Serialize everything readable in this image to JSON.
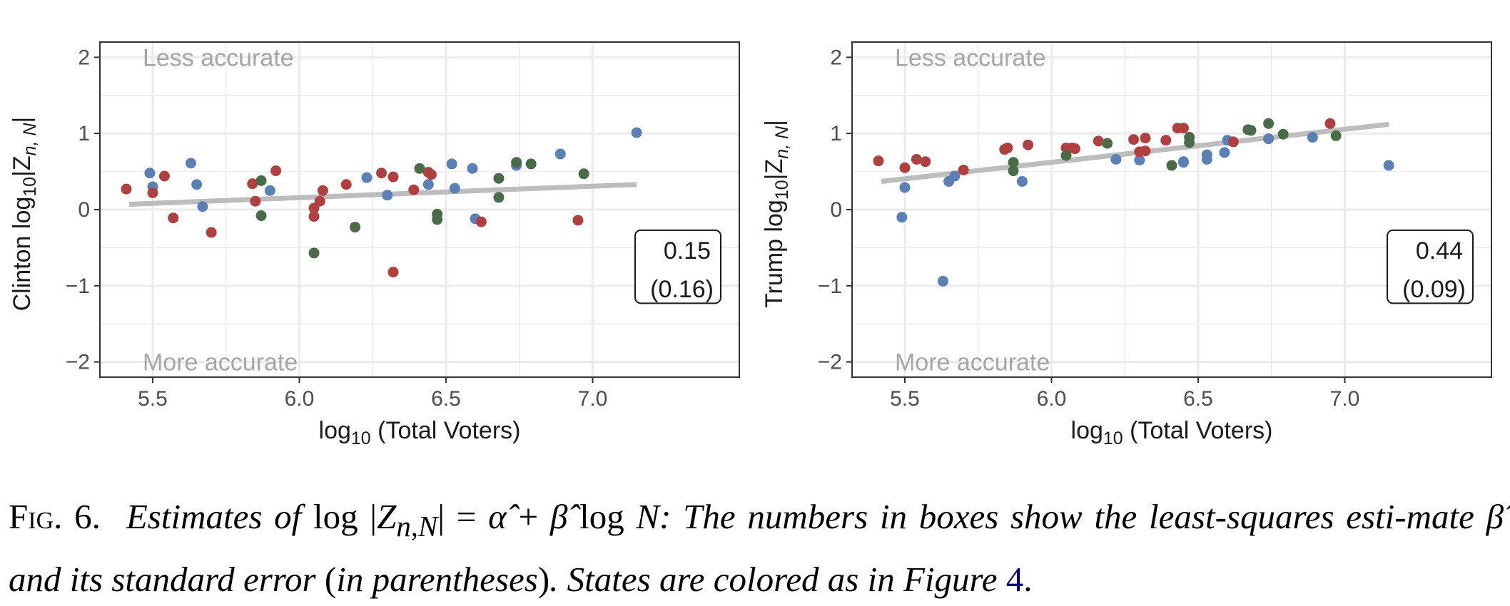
{
  "colors": {
    "blue": "#5b80b5",
    "red": "#b04040",
    "green": "#4a6b48",
    "fit_line": "#bdbdbd",
    "grid": "#ebebeb"
  },
  "chart_data": [
    {
      "type": "scatter",
      "ylabel_prefix": "Clinton  log",
      "ylabel_sub": "10",
      "ylabel_suffix": "|Z",
      "ylabel_index": "n, N",
      "ylabel_close": "|",
      "xlabel_prefix": "log",
      "xlabel_sub": "10",
      "xlabel_suffix": " (Total Voters)",
      "xlim": [
        5.32,
        7.5
      ],
      "ylim": [
        -2.2,
        2.2
      ],
      "x_ticks": [
        5.5,
        6.0,
        6.5,
        7.0
      ],
      "x_tick_labels": [
        "5.5",
        "6.0",
        "6.5",
        "7.0"
      ],
      "y_ticks": [
        -2,
        -1,
        0,
        1,
        2
      ],
      "y_tick_labels": [
        "−2",
        "−1",
        "0",
        "1",
        "2"
      ],
      "grid": true,
      "annotation_top": "Less accurate",
      "annotation_bottom": "More accurate",
      "estimate": "0.15",
      "std_error": "(0.16)",
      "fit_line": {
        "x": [
          5.42,
          7.15
        ],
        "y": [
          0.07,
          0.33
        ]
      },
      "series": [
        {
          "color_key": "blue",
          "points": [
            [
              5.49,
              0.48
            ],
            [
              5.5,
              0.3
            ],
            [
              5.63,
              0.61
            ],
            [
              5.65,
              0.33
            ],
            [
              5.67,
              0.04
            ],
            [
              5.9,
              0.25
            ],
            [
              6.23,
              0.42
            ],
            [
              6.3,
              0.19
            ],
            [
              6.44,
              0.33
            ],
            [
              6.52,
              0.6
            ],
            [
              6.53,
              0.28
            ],
            [
              6.59,
              0.54
            ],
            [
              6.6,
              -0.12
            ],
            [
              6.74,
              0.58
            ],
            [
              6.89,
              0.73
            ],
            [
              7.15,
              1.01
            ]
          ]
        },
        {
          "color_key": "red",
          "points": [
            [
              5.41,
              0.27
            ],
            [
              5.5,
              0.22
            ],
            [
              5.54,
              0.44
            ],
            [
              5.57,
              -0.11
            ],
            [
              5.7,
              -0.3
            ],
            [
              5.84,
              0.34
            ],
            [
              5.85,
              0.11
            ],
            [
              5.92,
              0.51
            ],
            [
              6.05,
              0.02
            ],
            [
              6.05,
              -0.09
            ],
            [
              6.07,
              0.11
            ],
            [
              6.08,
              0.25
            ],
            [
              6.16,
              0.33
            ],
            [
              6.28,
              0.48
            ],
            [
              6.32,
              0.43
            ],
            [
              6.32,
              -0.82
            ],
            [
              6.39,
              0.26
            ],
            [
              6.44,
              0.49
            ],
            [
              6.45,
              0.46
            ],
            [
              6.62,
              -0.16
            ],
            [
              6.95,
              -0.14
            ]
          ]
        },
        {
          "color_key": "green",
          "points": [
            [
              5.87,
              0.38
            ],
            [
              5.87,
              -0.08
            ],
            [
              6.05,
              -0.57
            ],
            [
              6.19,
              -0.23
            ],
            [
              6.41,
              0.54
            ],
            [
              6.47,
              -0.06
            ],
            [
              6.47,
              -0.13
            ],
            [
              6.68,
              0.41
            ],
            [
              6.68,
              0.16
            ],
            [
              6.74,
              0.62
            ],
            [
              6.79,
              0.6
            ],
            [
              6.97,
              0.47
            ]
          ]
        }
      ]
    },
    {
      "type": "scatter",
      "ylabel_prefix": "Trump  log",
      "ylabel_sub": "10",
      "ylabel_suffix": "|Z",
      "ylabel_index": "n, N",
      "ylabel_close": "|",
      "xlabel_prefix": "log",
      "xlabel_sub": "10",
      "xlabel_suffix": " (Total Voters)",
      "xlim": [
        5.32,
        7.5
      ],
      "ylim": [
        -2.2,
        2.2
      ],
      "x_ticks": [
        5.5,
        6.0,
        6.5,
        7.0
      ],
      "x_tick_labels": [
        "5.5",
        "6.0",
        "6.5",
        "7.0"
      ],
      "y_ticks": [
        -2,
        -1,
        0,
        1,
        2
      ],
      "y_tick_labels": [
        "−2",
        "−1",
        "0",
        "1",
        "2"
      ],
      "grid": true,
      "annotation_top": "Less accurate",
      "annotation_bottom": "More accurate",
      "estimate": "0.44",
      "std_error": "(0.09)",
      "fit_line": {
        "x": [
          5.42,
          7.15
        ],
        "y": [
          0.37,
          1.12
        ]
      },
      "series": [
        {
          "color_key": "blue",
          "points": [
            [
              5.49,
              -0.1
            ],
            [
              5.5,
              0.29
            ],
            [
              5.63,
              -0.94
            ],
            [
              5.65,
              0.37
            ],
            [
              5.67,
              0.44
            ],
            [
              5.9,
              0.37
            ],
            [
              6.22,
              0.66
            ],
            [
              6.3,
              0.65
            ],
            [
              6.45,
              0.63
            ],
            [
              6.45,
              0.62
            ],
            [
              6.53,
              0.72
            ],
            [
              6.53,
              0.66
            ],
            [
              6.59,
              0.75
            ],
            [
              6.6,
              0.91
            ],
            [
              6.74,
              0.93
            ],
            [
              6.89,
              0.95
            ],
            [
              7.15,
              0.58
            ]
          ]
        },
        {
          "color_key": "red",
          "points": [
            [
              5.41,
              0.64
            ],
            [
              5.5,
              0.55
            ],
            [
              5.54,
              0.66
            ],
            [
              5.57,
              0.63
            ],
            [
              5.7,
              0.52
            ],
            [
              5.84,
              0.79
            ],
            [
              5.85,
              0.81
            ],
            [
              5.92,
              0.85
            ],
            [
              6.05,
              0.81
            ],
            [
              6.07,
              0.81
            ],
            [
              6.08,
              0.8
            ],
            [
              6.16,
              0.9
            ],
            [
              6.28,
              0.92
            ],
            [
              6.3,
              0.76
            ],
            [
              6.32,
              0.77
            ],
            [
              6.32,
              0.94
            ],
            [
              6.39,
              0.91
            ],
            [
              6.43,
              1.07
            ],
            [
              6.45,
              1.07
            ],
            [
              6.62,
              0.89
            ],
            [
              6.95,
              1.13
            ]
          ]
        },
        {
          "color_key": "green",
          "points": [
            [
              5.87,
              0.62
            ],
            [
              5.87,
              0.51
            ],
            [
              6.05,
              0.71
            ],
            [
              6.19,
              0.87
            ],
            [
              6.41,
              0.58
            ],
            [
              6.47,
              0.88
            ],
            [
              6.47,
              0.95
            ],
            [
              6.67,
              1.05
            ],
            [
              6.68,
              1.04
            ],
            [
              6.74,
              1.13
            ],
            [
              6.79,
              0.99
            ],
            [
              6.97,
              0.97
            ]
          ]
        }
      ]
    }
  ],
  "caption": {
    "fig_label": "Fig. 6.",
    "t1": "Estimates of ",
    "m1": "log |",
    "m2": "Z",
    "m3": "n,N",
    "m4": "| = ",
    "m5": "α̂",
    "m6": " + ",
    "m7": "β̂",
    "m8": " log ",
    "m9": "N",
    "t2": ": The numbers in boxes show the least-squares esti-mate ",
    "m10": "β̂",
    "t3": " and its standard error ",
    "p1": "(",
    "t4": "in parentheses",
    "p2": ")",
    "t5": ". States are colored as in Figure ",
    "ref": "4",
    "t6": "."
  }
}
